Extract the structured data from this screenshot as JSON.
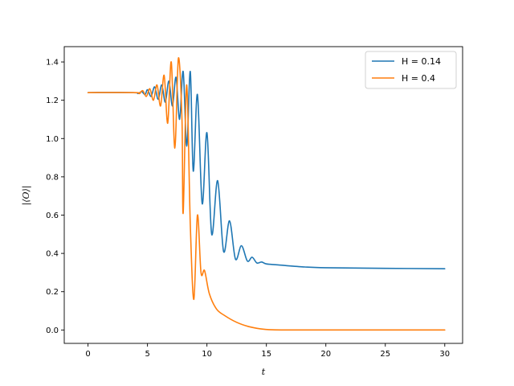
{
  "chart_data": {
    "type": "line",
    "title": "",
    "xlabel": "t",
    "ylabel": "|⟨O⟩|",
    "xlim": [
      -2,
      31.5
    ],
    "ylim": [
      -0.07,
      1.48
    ],
    "xticks": [
      0,
      5,
      10,
      15,
      20,
      25,
      30
    ],
    "yticks": [
      0.0,
      0.2,
      0.4,
      0.6,
      0.8,
      1.0,
      1.2,
      1.4
    ],
    "xtick_labels": [
      "0",
      "5",
      "10",
      "15",
      "20",
      "25",
      "30"
    ],
    "ytick_labels": [
      "0.0",
      "0.2",
      "0.4",
      "0.6",
      "0.8",
      "1.0",
      "1.2",
      "1.4"
    ],
    "grid": false,
    "legend_position": "top-right",
    "series": [
      {
        "name": "H = 0.14",
        "color": "#1f77b4",
        "points": [
          [
            0,
            1.24
          ],
          [
            3.8,
            1.24
          ],
          [
            4.2,
            1.235
          ],
          [
            4.5,
            1.245
          ],
          [
            4.8,
            1.23
          ],
          [
            5.0,
            1.255
          ],
          [
            5.3,
            1.22
          ],
          [
            5.6,
            1.27
          ],
          [
            5.9,
            1.205
          ],
          [
            6.2,
            1.28
          ],
          [
            6.5,
            1.19
          ],
          [
            6.8,
            1.3
          ],
          [
            7.1,
            1.17
          ],
          [
            7.4,
            1.32
          ],
          [
            7.7,
            1.1
          ],
          [
            8.0,
            1.35
          ],
          [
            8.3,
            0.96
          ],
          [
            8.6,
            1.35
          ],
          [
            8.85,
            0.83
          ],
          [
            9.2,
            1.23
          ],
          [
            9.6,
            0.66
          ],
          [
            10.0,
            1.03
          ],
          [
            10.4,
            0.5
          ],
          [
            10.9,
            0.78
          ],
          [
            11.4,
            0.41
          ],
          [
            11.9,
            0.57
          ],
          [
            12.4,
            0.37
          ],
          [
            12.9,
            0.44
          ],
          [
            13.4,
            0.36
          ],
          [
            13.8,
            0.38
          ],
          [
            14.2,
            0.35
          ],
          [
            14.6,
            0.355
          ],
          [
            15,
            0.345
          ],
          [
            16,
            0.34
          ],
          [
            18,
            0.33
          ],
          [
            20,
            0.325
          ],
          [
            25,
            0.322
          ],
          [
            30,
            0.32
          ]
        ]
      },
      {
        "name": "H = 0.4",
        "color": "#ff7f0e",
        "points": [
          [
            0,
            1.24
          ],
          [
            4.0,
            1.24
          ],
          [
            4.3,
            1.235
          ],
          [
            4.6,
            1.25
          ],
          [
            4.9,
            1.22
          ],
          [
            5.2,
            1.26
          ],
          [
            5.5,
            1.2
          ],
          [
            5.8,
            1.28
          ],
          [
            6.1,
            1.17
          ],
          [
            6.4,
            1.33
          ],
          [
            6.7,
            1.08
          ],
          [
            7.0,
            1.4
          ],
          [
            7.3,
            0.95
          ],
          [
            7.6,
            1.42
          ],
          [
            7.9,
            1.1
          ],
          [
            8.0,
            0.61
          ],
          [
            8.3,
            1.28
          ],
          [
            8.6,
            0.55
          ],
          [
            8.9,
            0.16
          ],
          [
            9.2,
            0.6
          ],
          [
            9.5,
            0.3
          ],
          [
            9.8,
            0.31
          ],
          [
            10.2,
            0.19
          ],
          [
            10.8,
            0.11
          ],
          [
            11.5,
            0.075
          ],
          [
            12.5,
            0.04
          ],
          [
            13.5,
            0.018
          ],
          [
            14.5,
            0.006
          ],
          [
            15.5,
            0.001
          ],
          [
            17,
            0.0
          ],
          [
            20,
            0.0
          ],
          [
            25,
            0.0
          ],
          [
            30,
            0.0
          ]
        ]
      }
    ]
  }
}
